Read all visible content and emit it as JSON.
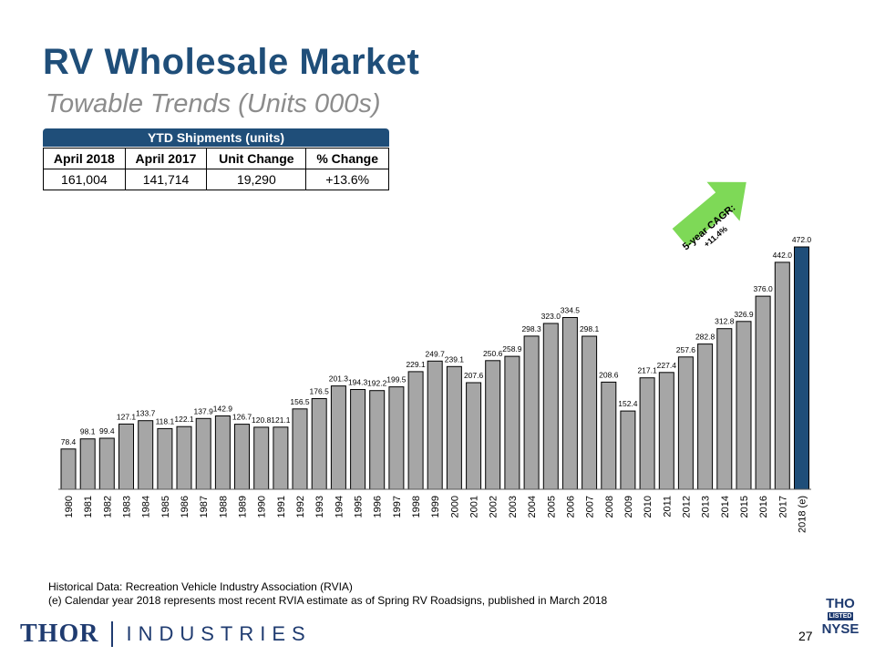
{
  "header": {
    "title": "RV Wholesale Market",
    "subtitle": "Towable Trends (Units 000s)"
  },
  "ytd": {
    "header": "YTD Shipments (units)",
    "columns": [
      "April 2018",
      "April 2017",
      "Unit Change",
      "% Change"
    ],
    "row": [
      "161,004",
      "141,714",
      "19,290",
      "+13.6%"
    ]
  },
  "cagr_label": [
    "5-year CAGR:",
    "+11.4%"
  ],
  "chart_data": {
    "type": "bar",
    "categories": [
      "1980",
      "1981",
      "1982",
      "1983",
      "1984",
      "1985",
      "1986",
      "1987",
      "1988",
      "1989",
      "1990",
      "1991",
      "1992",
      "1993",
      "1994",
      "1995",
      "1996",
      "1997",
      "1998",
      "1999",
      "2000",
      "2001",
      "2002",
      "2003",
      "2004",
      "2005",
      "2006",
      "2007",
      "2008",
      "2009",
      "2010",
      "2011",
      "2012",
      "2013",
      "2014",
      "2015",
      "2016",
      "2017",
      "2018 (e)"
    ],
    "values": [
      78.4,
      98.1,
      99.4,
      127.1,
      133.7,
      118.1,
      122.1,
      137.9,
      142.9,
      126.7,
      120.8,
      121.1,
      156.5,
      176.5,
      201.3,
      194.3,
      192.2,
      199.5,
      229.1,
      249.7,
      239.1,
      207.6,
      250.6,
      258.9,
      298.3,
      323.0,
      334.5,
      298.1,
      208.6,
      152.4,
      217.1,
      227.4,
      257.6,
      282.8,
      312.8,
      326.9,
      376.0,
      442.0,
      472.0
    ],
    "labels": [
      "78.4",
      "98.1",
      "99.4",
      "127.1",
      "133.7",
      "118.1",
      "122.1",
      "137.9",
      "142.9",
      "126.7",
      "120.8",
      "121.1",
      "156.5",
      "176.5",
      "201.3",
      "194.3",
      "192.2",
      "199.5",
      "229.1",
      "249.7",
      "239.1",
      "207.6",
      "250.6",
      "258.9",
      "298.3",
      "323.0",
      "334.5",
      "298.1",
      "208.6",
      "152.4",
      "217.1",
      "227.4",
      "257.6",
      "282.8",
      "312.8",
      "326.9",
      "376.0",
      "442.0",
      "472.0"
    ],
    "highlight_index": 38,
    "colors": {
      "bar": "#a6a6a6",
      "highlight": "#1f4e79",
      "arrow": "#7ed957"
    },
    "ylim": [
      0,
      472
    ]
  },
  "footnote": {
    "line1": "Historical Data: Recreation Vehicle Industry Association (RVIA)",
    "line2": "(e) Calendar year 2018 represents most recent RVIA estimate as of Spring RV Roadsigns, published in March 2018"
  },
  "logo": {
    "thor": "THOR",
    "industries": "INDUSTRIES",
    "ticker": "THO",
    "listed": "LISTED",
    "exchange": "NYSE"
  },
  "page_number": "27"
}
